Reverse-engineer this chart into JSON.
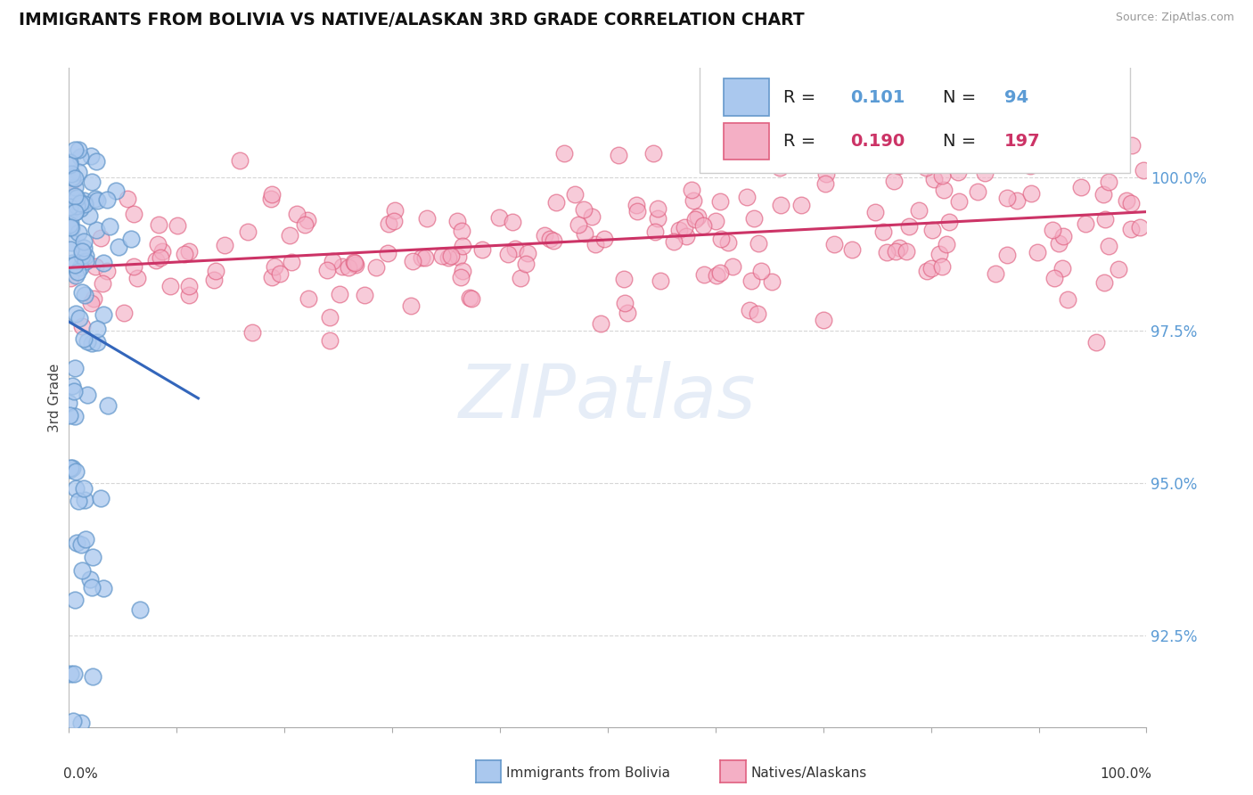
{
  "title": "IMMIGRANTS FROM BOLIVIA VS NATIVE/ALASKAN 3RD GRADE CORRELATION CHART",
  "source": "Source: ZipAtlas.com",
  "ylabel": "3rd Grade",
  "ylim": [
    91.0,
    101.8
  ],
  "xlim": [
    0.0,
    100.0
  ],
  "yticks": [
    92.5,
    95.0,
    97.5,
    100.0
  ],
  "ytick_labels": [
    "92.5%",
    "95.0%",
    "97.5%",
    "100.0%"
  ],
  "blue_R": 0.101,
  "blue_N": 94,
  "pink_R": 0.19,
  "pink_N": 197,
  "blue_color": "#aac8ee",
  "pink_color": "#f4afc5",
  "blue_edge_color": "#6699cc",
  "pink_edge_color": "#e06080",
  "blue_line_color": "#3366bb",
  "pink_line_color": "#cc3366",
  "watermark": "ZIPatlas",
  "legend_label_blue": "Immigrants from Bolivia",
  "legend_label_pink": "Natives/Alaskans",
  "tick_color": "#5b9bd5"
}
